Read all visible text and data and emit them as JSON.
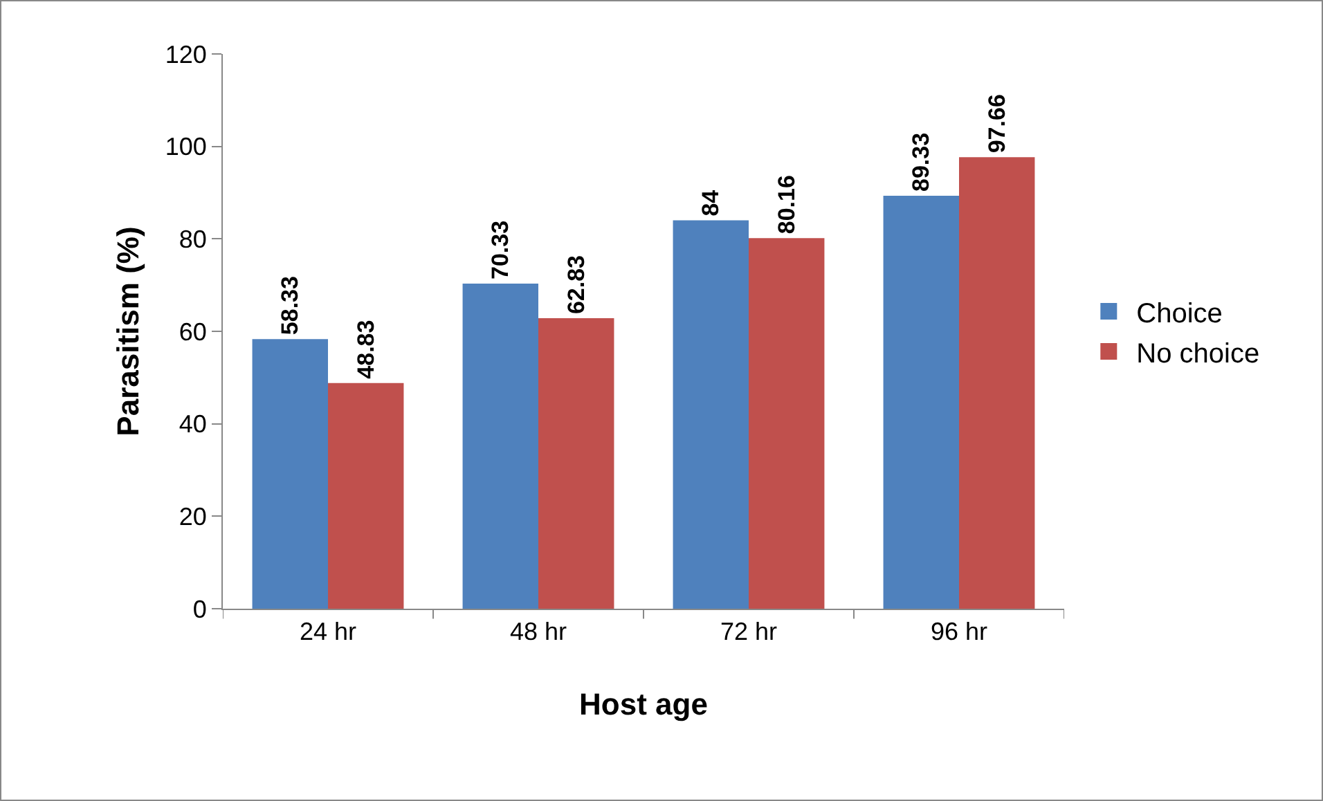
{
  "chart_data": {
    "type": "bar",
    "xlabel": "Host age",
    "ylabel": "Parasitism (%)",
    "categories": [
      "24 hr",
      "48 hr",
      "72 hr",
      "96 hr"
    ],
    "series": [
      {
        "name": "Choice",
        "color": "#4f81bd",
        "values": [
          58.33,
          70.33,
          84,
          89.33
        ]
      },
      {
        "name": "No choice",
        "color": "#c0504d",
        "values": [
          48.83,
          62.83,
          80.16,
          97.66
        ]
      }
    ],
    "ylim": [
      0,
      120
    ],
    "yticks": [
      0,
      20,
      40,
      60,
      80,
      100,
      120
    ],
    "grid": false,
    "legend": "right",
    "data_labels": true
  }
}
